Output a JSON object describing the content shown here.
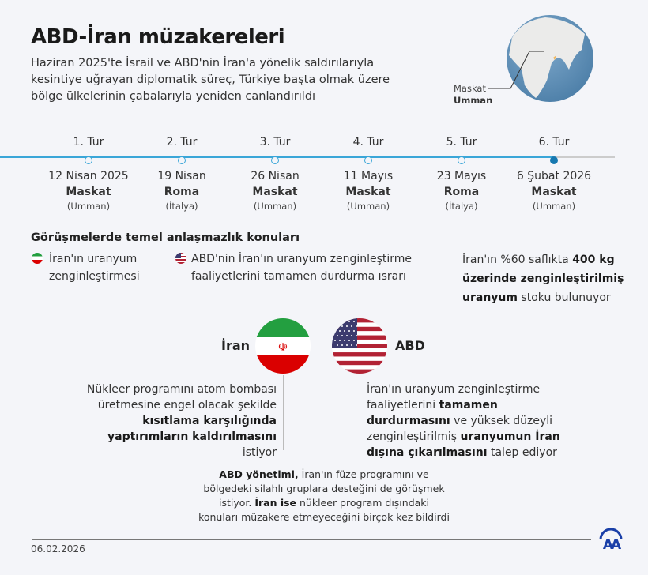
{
  "header": {
    "title": "ABD-İran müzakereleri",
    "subtitle": "Haziran 2025'te İsrail ve ABD'nin İran'a yönelik saldırılarıyla kesintiye uğrayan diplomatik süreç, Türkiye başta olmak üzere bölge ülkelerinin çabalarıyla yeniden canlandırıldı"
  },
  "map": {
    "city": "Maskat",
    "country": "Umman",
    "highlight_color": "#f0b860",
    "ocean_color": "#5b8fb8"
  },
  "timeline": {
    "accent": "#3aa6d8",
    "rounds": [
      {
        "round": "1. Tur",
        "date": "12 Nisan 2025",
        "city": "Maskat",
        "country": "(Umman)"
      },
      {
        "round": "2. Tur",
        "date": "19 Nisan",
        "city": "Roma",
        "country": "(İtalya)"
      },
      {
        "round": "3. Tur",
        "date": "26 Nisan",
        "city": "Maskat",
        "country": "(Umman)"
      },
      {
        "round": "4. Tur",
        "date": "11 Mayıs",
        "city": "Maskat",
        "country": "(Umman)"
      },
      {
        "round": "5. Tur",
        "date": "23 Mayıs",
        "city": "Roma",
        "country": "(İtalya)"
      },
      {
        "round": "6. Tur",
        "date": "6 Şubat 2026",
        "city": "Maskat",
        "country": "(Umman)"
      }
    ]
  },
  "issues": {
    "heading": "Görüşmelerde temel anlaşmazlık konuları",
    "iran": "İran'ın uranyum zenginleştirmesi",
    "usa": "ABD'nin İran'ın uranyum zenginleştirme faaliyetlerini tamamen durdurma ısrarı",
    "fact": {
      "p1": "İran'ın %60 saflıkta ",
      "b1": "400 kg üzerinde zenginleştirilmiş uranyum",
      "p2": " stoku bulunuyor"
    }
  },
  "sides": {
    "iran": {
      "name": "İran",
      "t1": "Nükleer programını atom bombası üretmesine engel olacak şekilde ",
      "b1": "kısıtlama karşılığında yaptırımların kaldırılmasını",
      "t2": " istiyor"
    },
    "usa": {
      "name": "ABD",
      "t1": "İran'ın uranyum zenginleştirme faaliyetlerini ",
      "b1": "tamamen durdurmasını",
      "t2": " ve yüksek düzeyli zenginleştirilmiş ",
      "b2": "uranyumun İran dışına çıkarılmasını",
      "t3": " talep ediyor"
    }
  },
  "bottom": {
    "b1": "ABD yönetimi,",
    "t1": " İran'ın füze programını ve bölgedeki silahlı gruplara desteğini de görüşmek istiyor. ",
    "b2": "İran ise",
    "t2": " nükleer program dışındaki konuları müzakere etmeyeceğini birçok kez bildirdi"
  },
  "footer": {
    "date": "06.02.2026",
    "logo": "AA",
    "logo_color": "#1a3fa8"
  }
}
